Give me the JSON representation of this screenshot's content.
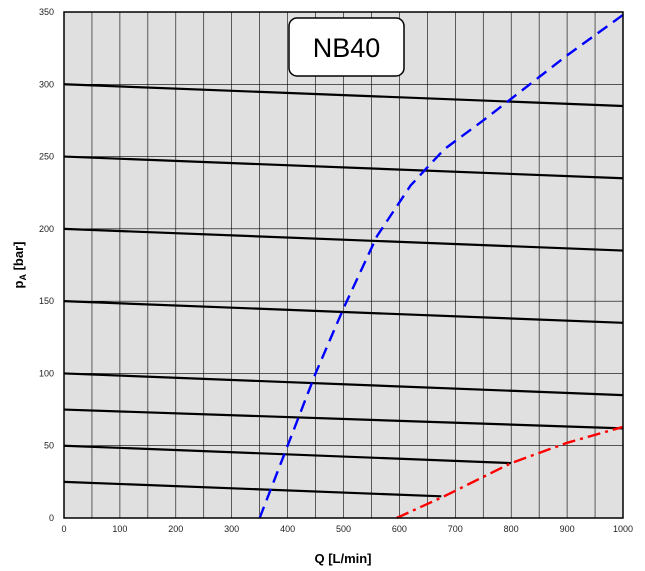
{
  "chart_data": {
    "type": "line",
    "title": "NB40",
    "xlabel": "Q [L/min]",
    "ylabel_main": "p",
    "ylabel_sub": "A",
    "ylabel_rest": " [bar]",
    "xlim": [
      0,
      1000
    ],
    "ylim": [
      0,
      350
    ],
    "x_ticks": [
      0,
      100,
      200,
      300,
      400,
      500,
      600,
      700,
      800,
      900,
      1000
    ],
    "y_ticks": [
      0,
      50,
      100,
      150,
      200,
      250,
      300,
      350
    ],
    "x_grid_minor_step": 50,
    "grid": true,
    "background_color": "#e0e0e0",
    "series": [
      {
        "style": "solid",
        "color": "#000000",
        "points": [
          [
            0,
            300
          ],
          [
            1000,
            285
          ]
        ]
      },
      {
        "style": "solid",
        "color": "#000000",
        "points": [
          [
            0,
            250
          ],
          [
            1000,
            235
          ]
        ]
      },
      {
        "style": "solid",
        "color": "#000000",
        "points": [
          [
            0,
            200
          ],
          [
            1000,
            185
          ]
        ]
      },
      {
        "style": "solid",
        "color": "#000000",
        "points": [
          [
            0,
            150
          ],
          [
            1000,
            135
          ]
        ]
      },
      {
        "style": "solid",
        "color": "#000000",
        "points": [
          [
            0,
            100
          ],
          [
            1000,
            85
          ]
        ]
      },
      {
        "style": "solid",
        "color": "#000000",
        "points": [
          [
            0,
            75
          ],
          [
            1000,
            62
          ]
        ]
      },
      {
        "style": "solid",
        "color": "#000000",
        "points": [
          [
            0,
            50
          ],
          [
            800,
            38
          ]
        ]
      },
      {
        "style": "solid",
        "color": "#000000",
        "points": [
          [
            0,
            25
          ],
          [
            675,
            15
          ]
        ]
      },
      {
        "style": "dashed",
        "color": "#0000ff",
        "points": [
          [
            350,
            0
          ],
          [
            400,
            50
          ],
          [
            450,
            100
          ],
          [
            500,
            145
          ],
          [
            560,
            195
          ],
          [
            620,
            230
          ],
          [
            680,
            255
          ],
          [
            750,
            275
          ],
          [
            800,
            290
          ],
          [
            900,
            320
          ],
          [
            1000,
            348
          ]
        ]
      },
      {
        "style": "dashdot",
        "color": "#ff0000",
        "points": [
          [
            595,
            0
          ],
          [
            680,
            15
          ],
          [
            800,
            38
          ],
          [
            900,
            52
          ],
          [
            1000,
            63
          ]
        ]
      }
    ]
  }
}
